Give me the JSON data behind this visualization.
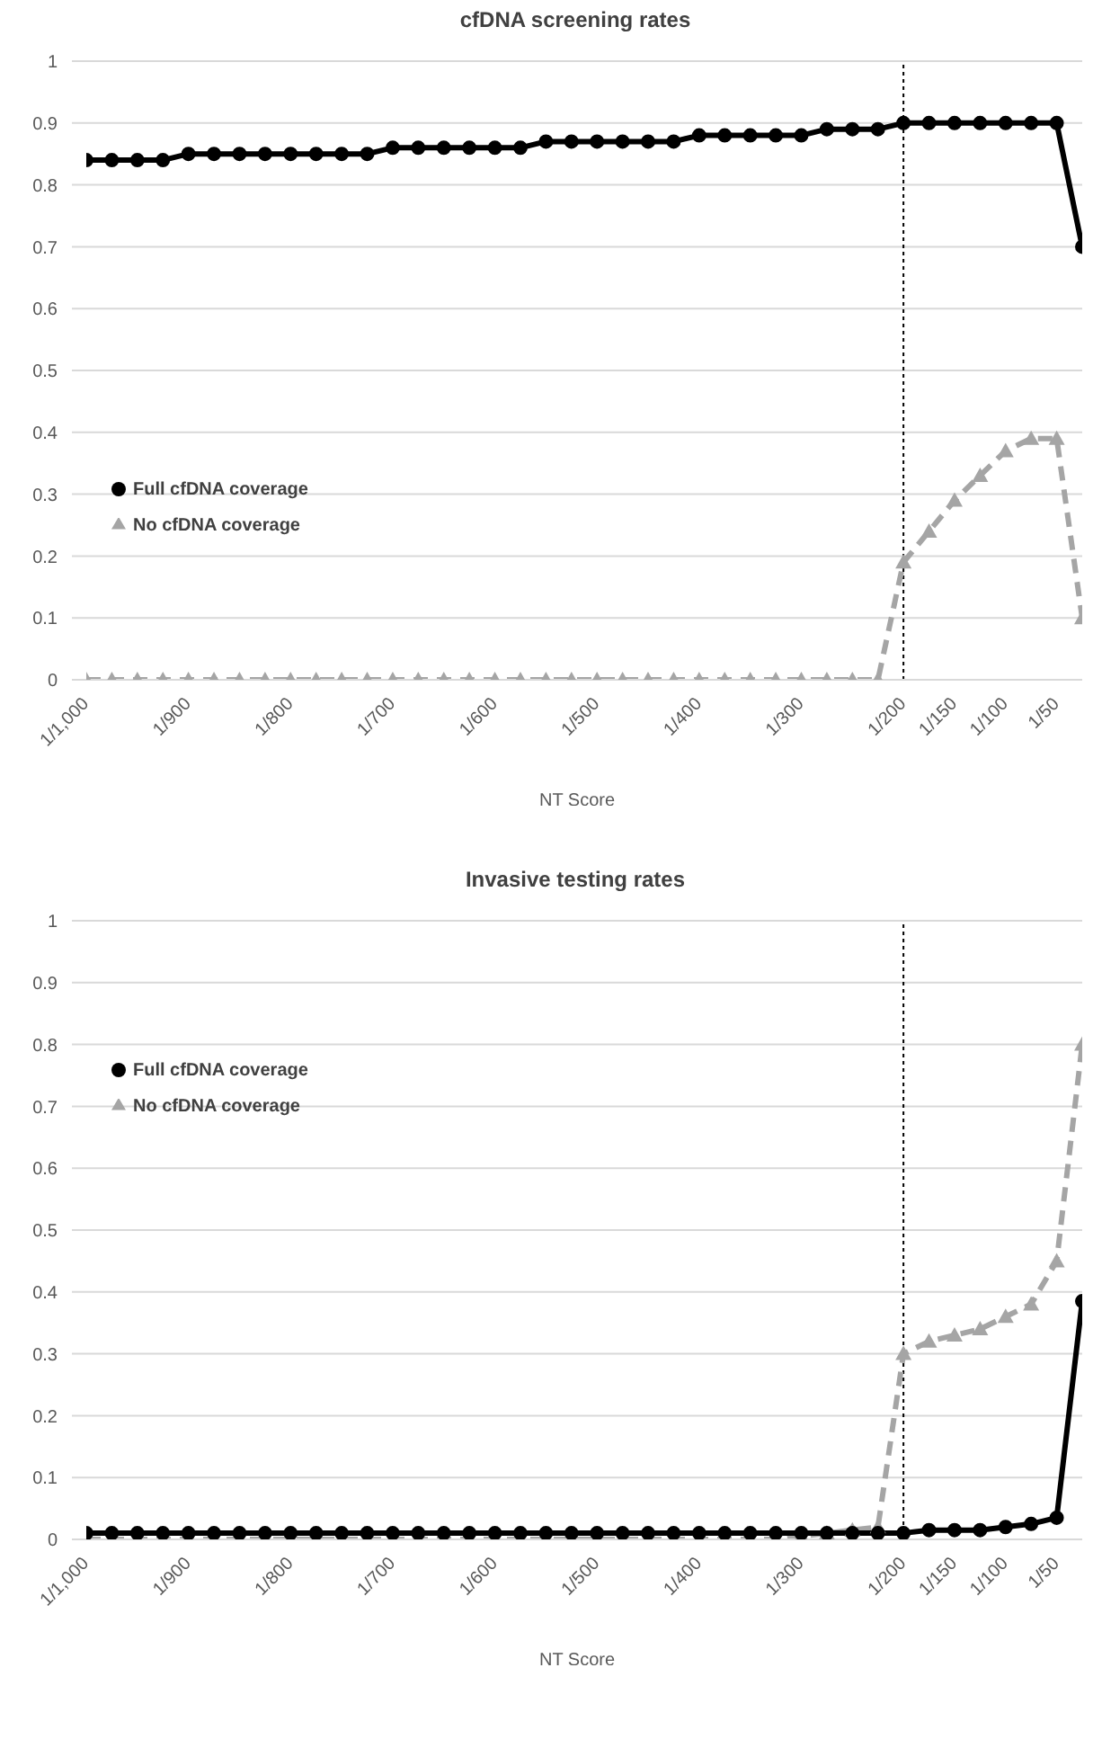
{
  "chart_data": [
    {
      "type": "line",
      "title": "cfDNA screening rates",
      "xlabel": "NT Score",
      "categories": [
        "1/1,000",
        null,
        null,
        null,
        "1/900",
        null,
        null,
        null,
        "1/800",
        null,
        null,
        null,
        "1/700",
        null,
        null,
        null,
        "1/600",
        null,
        null,
        null,
        "1/500",
        null,
        null,
        null,
        "1/400",
        null,
        null,
        null,
        "1/300",
        null,
        null,
        null,
        "1/200",
        null,
        "1/150",
        null,
        "1/100",
        null,
        "1/50",
        null
      ],
      "series": [
        {
          "name": "Full cfDNA coverage",
          "color": "#000000",
          "marker": "circle",
          "line_style": "solid",
          "values": [
            0.84,
            0.84,
            0.84,
            0.84,
            0.85,
            0.85,
            0.85,
            0.85,
            0.85,
            0.85,
            0.85,
            0.85,
            0.86,
            0.86,
            0.86,
            0.86,
            0.86,
            0.86,
            0.87,
            0.87,
            0.87,
            0.87,
            0.87,
            0.87,
            0.88,
            0.88,
            0.88,
            0.88,
            0.88,
            0.89,
            0.89,
            0.89,
            0.9,
            0.9,
            0.9,
            0.9,
            0.9,
            0.9,
            0.9,
            0.7
          ]
        },
        {
          "name": "No cfDNA coverage",
          "color": "#a5a5a5",
          "marker": "triangle",
          "line_style": "dashed",
          "values": [
            0,
            0,
            0,
            0,
            0,
            0,
            0,
            0,
            0,
            0,
            0,
            0,
            0,
            0,
            0,
            0,
            0,
            0,
            0,
            0,
            0,
            0,
            0,
            0,
            0,
            0,
            0,
            0,
            0,
            0,
            0,
            0,
            0.19,
            0.24,
            0.29,
            0.33,
            0.37,
            0.39,
            0.39,
            0.1
          ]
        }
      ],
      "ylim": [
        0,
        1
      ],
      "yticks": [
        0,
        0.1,
        0.2,
        0.3,
        0.4,
        0.5,
        0.6,
        0.7,
        0.8,
        0.9,
        1
      ],
      "grid": "y",
      "legend": "left",
      "ref_lines": [
        {
          "axis": "x",
          "value": "1/200",
          "color": "#000000",
          "line_style": "dotted"
        }
      ]
    },
    {
      "type": "line",
      "title": "Invasive testing rates",
      "xlabel": "NT Score",
      "categories": [
        "1/1,000",
        null,
        null,
        null,
        "1/900",
        null,
        null,
        null,
        "1/800",
        null,
        null,
        null,
        "1/700",
        null,
        null,
        null,
        "1/600",
        null,
        null,
        null,
        "1/500",
        null,
        null,
        null,
        "1/400",
        null,
        null,
        null,
        "1/300",
        null,
        null,
        null,
        "1/200",
        null,
        "1/150",
        null,
        "1/100",
        null,
        "1/50",
        null
      ],
      "series": [
        {
          "name": "Full cfDNA coverage",
          "color": "#000000",
          "marker": "circle",
          "line_style": "solid",
          "values": [
            0.01,
            0.01,
            0.01,
            0.01,
            0.01,
            0.01,
            0.01,
            0.01,
            0.01,
            0.01,
            0.01,
            0.01,
            0.01,
            0.01,
            0.01,
            0.01,
            0.01,
            0.01,
            0.01,
            0.01,
            0.01,
            0.01,
            0.01,
            0.01,
            0.01,
            0.01,
            0.01,
            0.01,
            0.01,
            0.01,
            0.01,
            0.01,
            0.01,
            0.015,
            0.015,
            0.015,
            0.02,
            0.025,
            0.035,
            0.385
          ]
        },
        {
          "name": "No cfDNA coverage",
          "color": "#a5a5a5",
          "marker": "triangle",
          "line_style": "dashed",
          "values": [
            0,
            0,
            0,
            0,
            0,
            0,
            0,
            0,
            0,
            0,
            0,
            0,
            0,
            0,
            0,
            0,
            0,
            0,
            0,
            0,
            0,
            0,
            0,
            0,
            0,
            0,
            0,
            0,
            0.005,
            0.01,
            0.015,
            0.02,
            0.3,
            0.32,
            0.33,
            0.34,
            0.36,
            0.38,
            0.45,
            0.8
          ]
        }
      ],
      "ylim": [
        0,
        1
      ],
      "yticks": [
        0,
        0.1,
        0.2,
        0.3,
        0.4,
        0.5,
        0.6,
        0.7,
        0.8,
        0.9,
        1
      ],
      "grid": "y",
      "legend": "top left",
      "ref_lines": [
        {
          "axis": "x",
          "value": "1/200",
          "color": "#000000",
          "line_style": "dotted"
        }
      ]
    }
  ]
}
